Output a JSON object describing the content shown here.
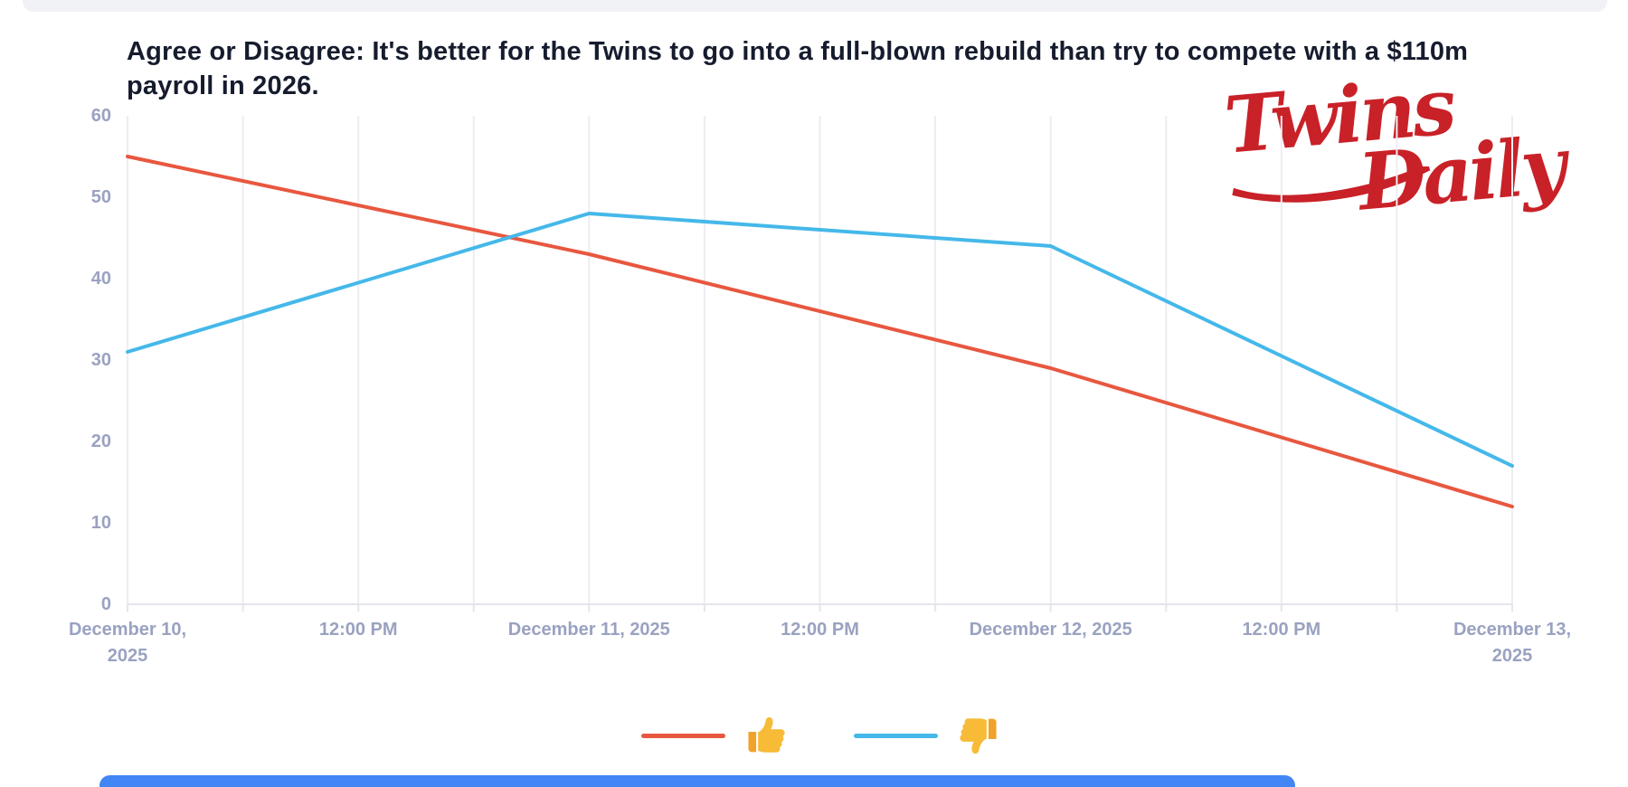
{
  "title": "Agree or Disagree: It's better for the Twins to go into a full-blown rebuild than try to compete with a $110m payroll in 2026.",
  "logo": {
    "word1": "Twins",
    "word2": "Daily"
  },
  "colors": {
    "agree_line": "#e8573f",
    "disagree_line": "#45b8e9",
    "grid": "#ededf2",
    "baseline": "#e4e6eb",
    "axis_label": "#9aa2c1",
    "title_text": "#161c2e",
    "logo_red": "#c92128",
    "top_strip": "#f1f2f6",
    "bottom_strip": "#4286f5"
  },
  "legend": {
    "items": [
      {
        "label": "👍",
        "icon": "thumbs-up-emoji",
        "series_index": 0
      },
      {
        "label": "👎",
        "icon": "thumbs-down-emoji",
        "series_index": 1
      }
    ]
  },
  "chart_data": {
    "type": "line",
    "title": "Agree or Disagree: It's better for the Twins to go into a full-blown rebuild than try to compete with a $110m payroll in 2026.",
    "x": [
      "December 10, 2025",
      "December 11, 2025",
      "December 12, 2025",
      "December 13, 2025"
    ],
    "series": [
      {
        "name": "👍 agree",
        "color": "#e8573f",
        "values": [
          55,
          43,
          29,
          12
        ]
      },
      {
        "name": "👎 disagree",
        "color": "#45b8e9",
        "values": [
          31,
          48,
          44,
          17
        ]
      }
    ],
    "ylim": [
      0,
      60
    ],
    "y_ticks": [
      0,
      10,
      20,
      30,
      40,
      50,
      60
    ],
    "x_tick_labels": [
      "December 10, 2025",
      "12:00 PM",
      "December 11, 2025",
      "12:00 PM",
      "December 12, 2025",
      "12:00 PM",
      "December 13, 2025"
    ],
    "grid": "vertical gridlines every 6 hours, no horizontal gridlines",
    "legend_position": "bottom-center",
    "line_width": 4
  }
}
